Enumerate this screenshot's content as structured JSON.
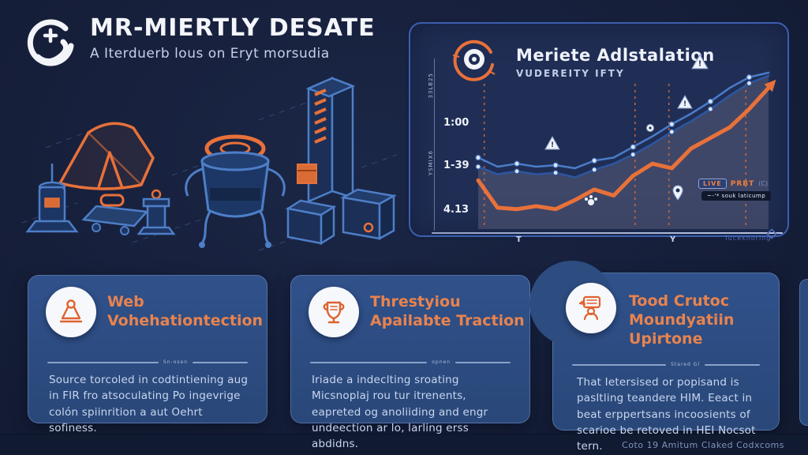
{
  "colors": {
    "background": "#161f3a",
    "panel": "#202e55",
    "panel_border": "#3b5fae",
    "card": "#2b4a7e",
    "accent_orange": "#e8713a",
    "title_white": "#f2f4f9",
    "body_text": "#c9d6ef",
    "blue_line": "#3f74c4",
    "blue_line_dark": "#2c57a0",
    "area_fill": "#5d5f7c"
  },
  "header": {
    "title": "MR-MIERTLY DESATE",
    "subtitle": "A Iterduerb lous on Eryt morsudia",
    "logo": "s-plus-logo"
  },
  "panel": {
    "title": "Meriete Adlstalation",
    "subtitle": "VUDEREITY IFTY",
    "icon": "target-icon",
    "ruler_top_label": "33LB25",
    "ruler_mid_label": "YSMIX6",
    "y_labels": [
      "1:00",
      "1-39",
      "4.13"
    ],
    "x_labels": [
      "T",
      "Y"
    ],
    "watermark": "Tuceknoring",
    "legend": {
      "badge": "LIVE",
      "text": "PRBT",
      "paren": "(C)",
      "caption": "~-'* souk laticump"
    }
  },
  "chart_data": {
    "type": "line",
    "title": "Meriete Adlstalation",
    "subtitle": "VUDEREITY IFTY",
    "x": [
      0,
      1,
      2,
      3,
      4,
      5,
      6,
      7,
      8,
      9,
      10,
      11,
      12,
      13,
      14,
      15
    ],
    "series": [
      {
        "name": "upper-blue",
        "color": "#4a7cc9",
        "width": 2.5,
        "values": [
          44,
          38,
          40,
          38,
          39,
          37,
          42,
          44,
          51,
          58,
          66,
          73,
          81,
          90,
          97,
          100
        ]
      },
      {
        "name": "lower-blue",
        "color": "#2c57a0",
        "width": 2.5,
        "values": [
          38,
          33,
          35,
          33,
          34,
          31,
          36,
          40,
          46,
          53,
          61,
          68,
          76,
          85,
          93,
          98
        ]
      },
      {
        "name": "orange",
        "color": "#e8713a",
        "width": 5,
        "values": [
          29,
          11,
          10,
          12,
          10,
          16,
          23,
          19,
          32,
          40,
          37,
          50,
          57,
          64,
          76,
          90
        ]
      }
    ],
    "area_under": "lower-blue",
    "area_color": "#5d5f7c",
    "area_opacity": 0.5,
    "dashed_vertical_fractions": [
      0.03,
      0.52,
      0.63,
      0.88
    ],
    "dashed_color": "#d96c35",
    "y_tick_labels": [
      "1:00",
      "1-39",
      "4.13"
    ],
    "x_tick_labels": [
      "T",
      "Y"
    ],
    "ylim": [
      0,
      100
    ],
    "grid": false,
    "legend_position": "bottom-right"
  },
  "cards": [
    {
      "icon": "stamp-flask-icon",
      "title_line1": "Web",
      "title_line2": "Vohehationtection",
      "divider_label": "Sn-osen",
      "body": "Source torcoled in codtintiening aug in FIR fro atsoculating Po ingevrige colón spiinrition a aut Oehrt sofiness."
    },
    {
      "icon": "trophy-shield-icon",
      "title_line1": "Threstyiou",
      "title_line2": "Apailabte Traction",
      "divider_label": "opnen",
      "body": "Iriade a indeclting sroating Micsnoplaj rou tur itrenents, eapreted og anoliiding and engr undeection ar lo, larling erss abdidns."
    },
    {
      "icon": "person-chat-icon",
      "title_line1": "Tood Crutoc",
      "title_line2": "Moundyatiin Upirtone",
      "divider_label": "Stared Gl",
      "body": "That Ietersised or popisand is pasltling teandere HIM. Eeact in beat erppertsans incoosients of scarioe be retoved in HEI Nocsot tern."
    }
  ],
  "footer": {
    "caption": "Coto 19 Amitum Claked Codxcoms"
  }
}
